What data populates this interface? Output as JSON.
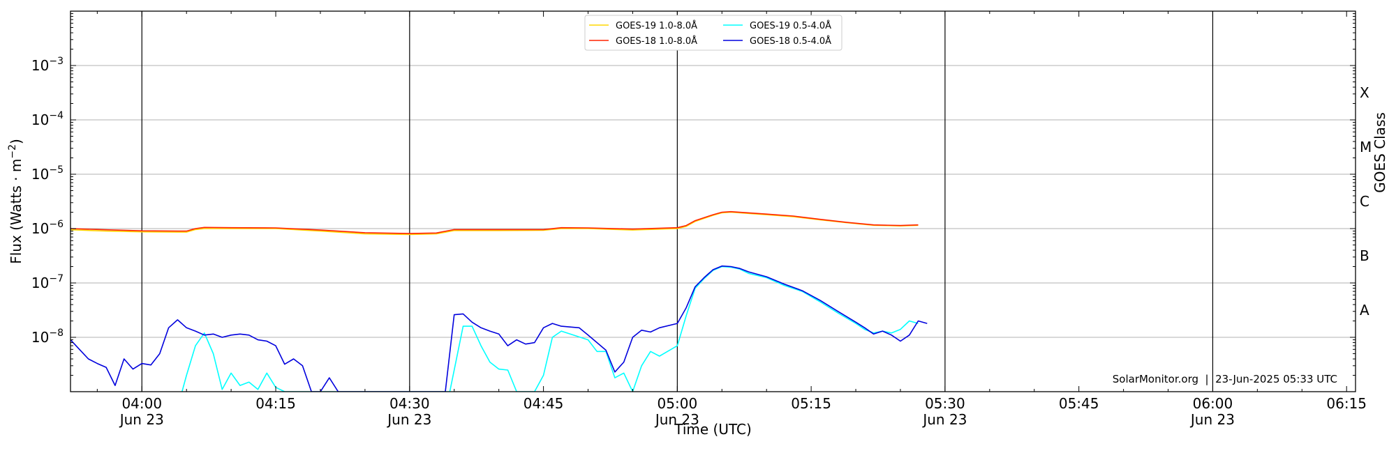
{
  "chart_data": {
    "type": "line",
    "xlabel": "Time (UTC)",
    "ylabel": "Flux (Watts · m",
    "ylabel_sup": "−2",
    "ylabel_close": ")",
    "y2label": "GOES Class",
    "yscale": "log",
    "xlim": [
      "03:52",
      "06:16"
    ],
    "ylim": [
      1e-09,
      0.01
    ],
    "grid": "horizontal",
    "legend_placement": "upper center",
    "date_label": "Jun 23",
    "x_ticks": [
      {
        "t": "04:00",
        "label": "04:00",
        "date": "Jun 23"
      },
      {
        "t": "04:15",
        "label": "04:15",
        "date": ""
      },
      {
        "t": "04:30",
        "label": "04:30",
        "date": "Jun 23"
      },
      {
        "t": "04:45",
        "label": "04:45",
        "date": ""
      },
      {
        "t": "05:00",
        "label": "05:00",
        "date": "Jun 23"
      },
      {
        "t": "05:15",
        "label": "05:15",
        "date": ""
      },
      {
        "t": "05:30",
        "label": "05:30",
        "date": "Jun 23"
      },
      {
        "t": "05:45",
        "label": "05:45",
        "date": ""
      },
      {
        "t": "06:00",
        "label": "06:00",
        "date": "Jun 23"
      },
      {
        "t": "06:15",
        "label": "06:15",
        "date": ""
      }
    ],
    "vertical_lines": [
      "04:00",
      "04:30",
      "05:00",
      "05:30",
      "06:00"
    ],
    "y_ticks": [
      {
        "value": 0.001,
        "base": "10",
        "exp": "−3"
      },
      {
        "value": 0.0001,
        "base": "10",
        "exp": "−4"
      },
      {
        "value": 1e-05,
        "base": "10",
        "exp": "−5"
      },
      {
        "value": 1e-06,
        "base": "10",
        "exp": "−6"
      },
      {
        "value": 1e-07,
        "base": "10",
        "exp": "−7"
      },
      {
        "value": 1e-08,
        "base": "10",
        "exp": "−8"
      }
    ],
    "goes_classes": [
      {
        "label": "X",
        "level": 0.0001
      },
      {
        "label": "M",
        "level": 1e-05
      },
      {
        "label": "C",
        "level": 1e-06
      },
      {
        "label": "B",
        "level": 1e-07
      },
      {
        "label": "A",
        "level": 1e-08
      }
    ],
    "legend": [
      {
        "label": "GOES-19 1.0-8.0Å",
        "color": "#ffd700"
      },
      {
        "label": "GOES-19 0.5-4.0Å",
        "color": "#00ffff"
      },
      {
        "label": "GOES-18 1.0-8.0Å",
        "color": "#ff2200"
      },
      {
        "label": "GOES-18 0.5-4.0Å",
        "color": "#0000dd"
      }
    ],
    "watermark": "SolarMonitor.org  |  23-Jun-2025 05:33 UTC",
    "series": [
      {
        "name": "GOES-19 1.0-8.0Å",
        "color": "#ffd700",
        "points": [
          [
            "03:52",
            9.5e-07
          ],
          [
            "03:56",
            9e-07
          ],
          [
            "04:00",
            8.7e-07
          ],
          [
            "04:05",
            8.6e-07
          ],
          [
            "04:06",
            9.6e-07
          ],
          [
            "04:07",
            1e-06
          ],
          [
            "04:10",
            1e-06
          ],
          [
            "04:15",
            1e-06
          ],
          [
            "04:20",
            9e-07
          ],
          [
            "04:25",
            8e-07
          ],
          [
            "04:30",
            7.8e-07
          ],
          [
            "04:33",
            8e-07
          ],
          [
            "04:35",
            9.2e-07
          ],
          [
            "04:40",
            9.2e-07
          ],
          [
            "04:45",
            9.3e-07
          ],
          [
            "04:47",
            1e-06
          ],
          [
            "04:50",
            1e-06
          ],
          [
            "04:55",
            9.4e-07
          ],
          [
            "05:00",
            1e-06
          ],
          [
            "05:01",
            1.1e-06
          ],
          [
            "05:02",
            1.35e-06
          ],
          [
            "05:04",
            1.75e-06
          ],
          [
            "05:05",
            1.95e-06
          ],
          [
            "05:06",
            2e-06
          ],
          [
            "05:08",
            1.9e-06
          ],
          [
            "05:10",
            1.8e-06
          ],
          [
            "05:13",
            1.65e-06
          ],
          [
            "05:16",
            1.45e-06
          ],
          [
            "05:19",
            1.28e-06
          ],
          [
            "05:22",
            1.15e-06
          ],
          [
            "05:25",
            1.12e-06
          ],
          [
            "05:27",
            1.15e-06
          ]
        ]
      },
      {
        "name": "GOES-18 1.0-8.0Å",
        "color": "#ff2200",
        "points": [
          [
            "03:52",
            1e-06
          ],
          [
            "03:56",
            9.5e-07
          ],
          [
            "04:00",
            9.1e-07
          ],
          [
            "04:05",
            9e-07
          ],
          [
            "04:06",
            1e-06
          ],
          [
            "04:07",
            1.05e-06
          ],
          [
            "04:10",
            1.04e-06
          ],
          [
            "04:15",
            1.03e-06
          ],
          [
            "04:20",
            9.4e-07
          ],
          [
            "04:25",
            8.4e-07
          ],
          [
            "04:30",
            8.1e-07
          ],
          [
            "04:33",
            8.3e-07
          ],
          [
            "04:35",
            9.6e-07
          ],
          [
            "04:40",
            9.6e-07
          ],
          [
            "04:45",
            9.6e-07
          ],
          [
            "04:47",
            1.04e-06
          ],
          [
            "04:50",
            1.03e-06
          ],
          [
            "04:55",
            9.8e-07
          ],
          [
            "05:00",
            1.04e-06
          ],
          [
            "05:01",
            1.14e-06
          ],
          [
            "05:02",
            1.4e-06
          ],
          [
            "05:04",
            1.8e-06
          ],
          [
            "05:05",
            2e-06
          ],
          [
            "05:06",
            2.05e-06
          ],
          [
            "05:08",
            1.95e-06
          ],
          [
            "05:10",
            1.85e-06
          ],
          [
            "05:13",
            1.7e-06
          ],
          [
            "05:16",
            1.48e-06
          ],
          [
            "05:19",
            1.3e-06
          ],
          [
            "05:22",
            1.17e-06
          ],
          [
            "05:25",
            1.14e-06
          ],
          [
            "05:27",
            1.17e-06
          ]
        ]
      },
      {
        "name": "GOES-19 0.5-4.0Å",
        "color": "#00ffff",
        "points": [
          [
            "04:04.5",
            1e-09
          ],
          [
            "04:05",
            2e-09
          ],
          [
            "04:06",
            7e-09
          ],
          [
            "04:07",
            1.2e-08
          ],
          [
            "04:08",
            5e-09
          ],
          [
            "04:09",
            1.1e-09
          ],
          [
            "04:10",
            2.2e-09
          ],
          [
            "04:11",
            1.3e-09
          ],
          [
            "04:12",
            1.5e-09
          ],
          [
            "04:13",
            1.1e-09
          ],
          [
            "04:14",
            2.2e-09
          ],
          [
            "04:15",
            1.2e-09
          ],
          [
            "04:16",
            1e-09
          ],
          [
            "04:34.5",
            1e-09
          ],
          [
            "04:36",
            1.6e-08
          ],
          [
            "04:37",
            1.6e-08
          ],
          [
            "04:38",
            7e-09
          ],
          [
            "04:39",
            3.5e-09
          ],
          [
            "04:40",
            2.6e-09
          ],
          [
            "04:41",
            2.5e-09
          ],
          [
            "04:42",
            1e-09
          ],
          [
            "04:43",
            1e-09
          ],
          [
            "04:44",
            1e-09
          ],
          [
            "04:45",
            2e-09
          ],
          [
            "04:46",
            1e-08
          ],
          [
            "04:47",
            1.3e-08
          ],
          [
            "04:48",
            1.15e-08
          ],
          [
            "04:50",
            9e-09
          ],
          [
            "04:51",
            5.5e-09
          ],
          [
            "04:52",
            5.5e-09
          ],
          [
            "04:53",
            1.8e-09
          ],
          [
            "04:54",
            2.2e-09
          ],
          [
            "04:55",
            1e-09
          ],
          [
            "04:56",
            3e-09
          ],
          [
            "04:57",
            5.5e-09
          ],
          [
            "04:58",
            4.5e-09
          ],
          [
            "05:00",
            7e-09
          ],
          [
            "05:01",
            2.5e-08
          ],
          [
            "05:02",
            8e-08
          ],
          [
            "05:03",
            1.2e-07
          ],
          [
            "05:04",
            1.7e-07
          ],
          [
            "05:05",
            2e-07
          ],
          [
            "05:06",
            1.95e-07
          ],
          [
            "05:07",
            1.8e-07
          ],
          [
            "05:08",
            1.5e-07
          ],
          [
            "05:10",
            1.25e-07
          ],
          [
            "05:12",
            9e-08
          ],
          [
            "05:14",
            7e-08
          ],
          [
            "05:16",
            4.5e-08
          ],
          [
            "05:18",
            2.8e-08
          ],
          [
            "05:20",
            1.8e-08
          ],
          [
            "05:21",
            1.4e-08
          ],
          [
            "05:22",
            1.2e-08
          ],
          [
            "05:23",
            1.3e-08
          ],
          [
            "05:24",
            1.2e-08
          ],
          [
            "05:25",
            1.4e-08
          ],
          [
            "05:26",
            2e-08
          ],
          [
            "05:27",
            1.8e-08
          ]
        ]
      },
      {
        "name": "GOES-18 0.5-4.0Å",
        "color": "#0000dd",
        "points": [
          [
            "03:52",
            9e-09
          ],
          [
            "03:53",
            6e-09
          ],
          [
            "03:54",
            4e-09
          ],
          [
            "03:55",
            3.3e-09
          ],
          [
            "03:56",
            2.8e-09
          ],
          [
            "03:57",
            1.3e-09
          ],
          [
            "03:58",
            4e-09
          ],
          [
            "03:59",
            2.6e-09
          ],
          [
            "04:00",
            3.3e-09
          ],
          [
            "04:01",
            3.1e-09
          ],
          [
            "04:02",
            5e-09
          ],
          [
            "04:03",
            1.5e-08
          ],
          [
            "04:04",
            2.1e-08
          ],
          [
            "04:05",
            1.5e-08
          ],
          [
            "04:06",
            1.3e-08
          ],
          [
            "04:07",
            1.1e-08
          ],
          [
            "04:08",
            1.15e-08
          ],
          [
            "04:09",
            1e-08
          ],
          [
            "04:10",
            1.1e-08
          ],
          [
            "04:11",
            1.15e-08
          ],
          [
            "04:12",
            1.1e-08
          ],
          [
            "04:13",
            9e-09
          ],
          [
            "04:14",
            8.5e-09
          ],
          [
            "04:15",
            7e-09
          ],
          [
            "04:16",
            3.2e-09
          ],
          [
            "04:17",
            4e-09
          ],
          [
            "04:18",
            3e-09
          ],
          [
            "04:19",
            1e-09
          ],
          [
            "04:20",
            1e-09
          ],
          [
            "04:21",
            1.8e-09
          ],
          [
            "04:22",
            1e-09
          ],
          [
            "04:34",
            1e-09
          ],
          [
            "04:35",
            2.6e-08
          ],
          [
            "04:36",
            2.7e-08
          ],
          [
            "04:37",
            1.9e-08
          ],
          [
            "04:38",
            1.5e-08
          ],
          [
            "04:39",
            1.3e-08
          ],
          [
            "04:40",
            1.15e-08
          ],
          [
            "04:41",
            7e-09
          ],
          [
            "04:42",
            9e-09
          ],
          [
            "04:43",
            7.5e-09
          ],
          [
            "04:44",
            8e-09
          ],
          [
            "04:45",
            1.5e-08
          ],
          [
            "04:46",
            1.8e-08
          ],
          [
            "04:47",
            1.6e-08
          ],
          [
            "04:48",
            1.55e-08
          ],
          [
            "04:49",
            1.5e-08
          ],
          [
            "04:50",
            1.1e-08
          ],
          [
            "04:51",
            8e-09
          ],
          [
            "04:52",
            5.8e-09
          ],
          [
            "04:53",
            2.3e-09
          ],
          [
            "04:54",
            3.5e-09
          ],
          [
            "04:55",
            1e-08
          ],
          [
            "04:56",
            1.35e-08
          ],
          [
            "04:57",
            1.25e-08
          ],
          [
            "04:58",
            1.5e-08
          ],
          [
            "05:00",
            1.8e-08
          ],
          [
            "05:01",
            3.5e-08
          ],
          [
            "05:02",
            8.5e-08
          ],
          [
            "05:03",
            1.25e-07
          ],
          [
            "05:04",
            1.75e-07
          ],
          [
            "05:05",
            2.05e-07
          ],
          [
            "05:06",
            2e-07
          ],
          [
            "05:07",
            1.85e-07
          ],
          [
            "05:08",
            1.6e-07
          ],
          [
            "05:10",
            1.3e-07
          ],
          [
            "05:12",
            9.5e-08
          ],
          [
            "05:14",
            7.2e-08
          ],
          [
            "05:16",
            4.8e-08
          ],
          [
            "05:18",
            3e-08
          ],
          [
            "05:20",
            1.9e-08
          ],
          [
            "05:21",
            1.5e-08
          ],
          [
            "05:22",
            1.15e-08
          ],
          [
            "05:23",
            1.3e-08
          ],
          [
            "05:24",
            1.1e-08
          ],
          [
            "05:25",
            8.5e-09
          ],
          [
            "05:26",
            1.1e-08
          ],
          [
            "05:27",
            2e-08
          ],
          [
            "05:28",
            1.8e-08
          ]
        ]
      }
    ]
  }
}
